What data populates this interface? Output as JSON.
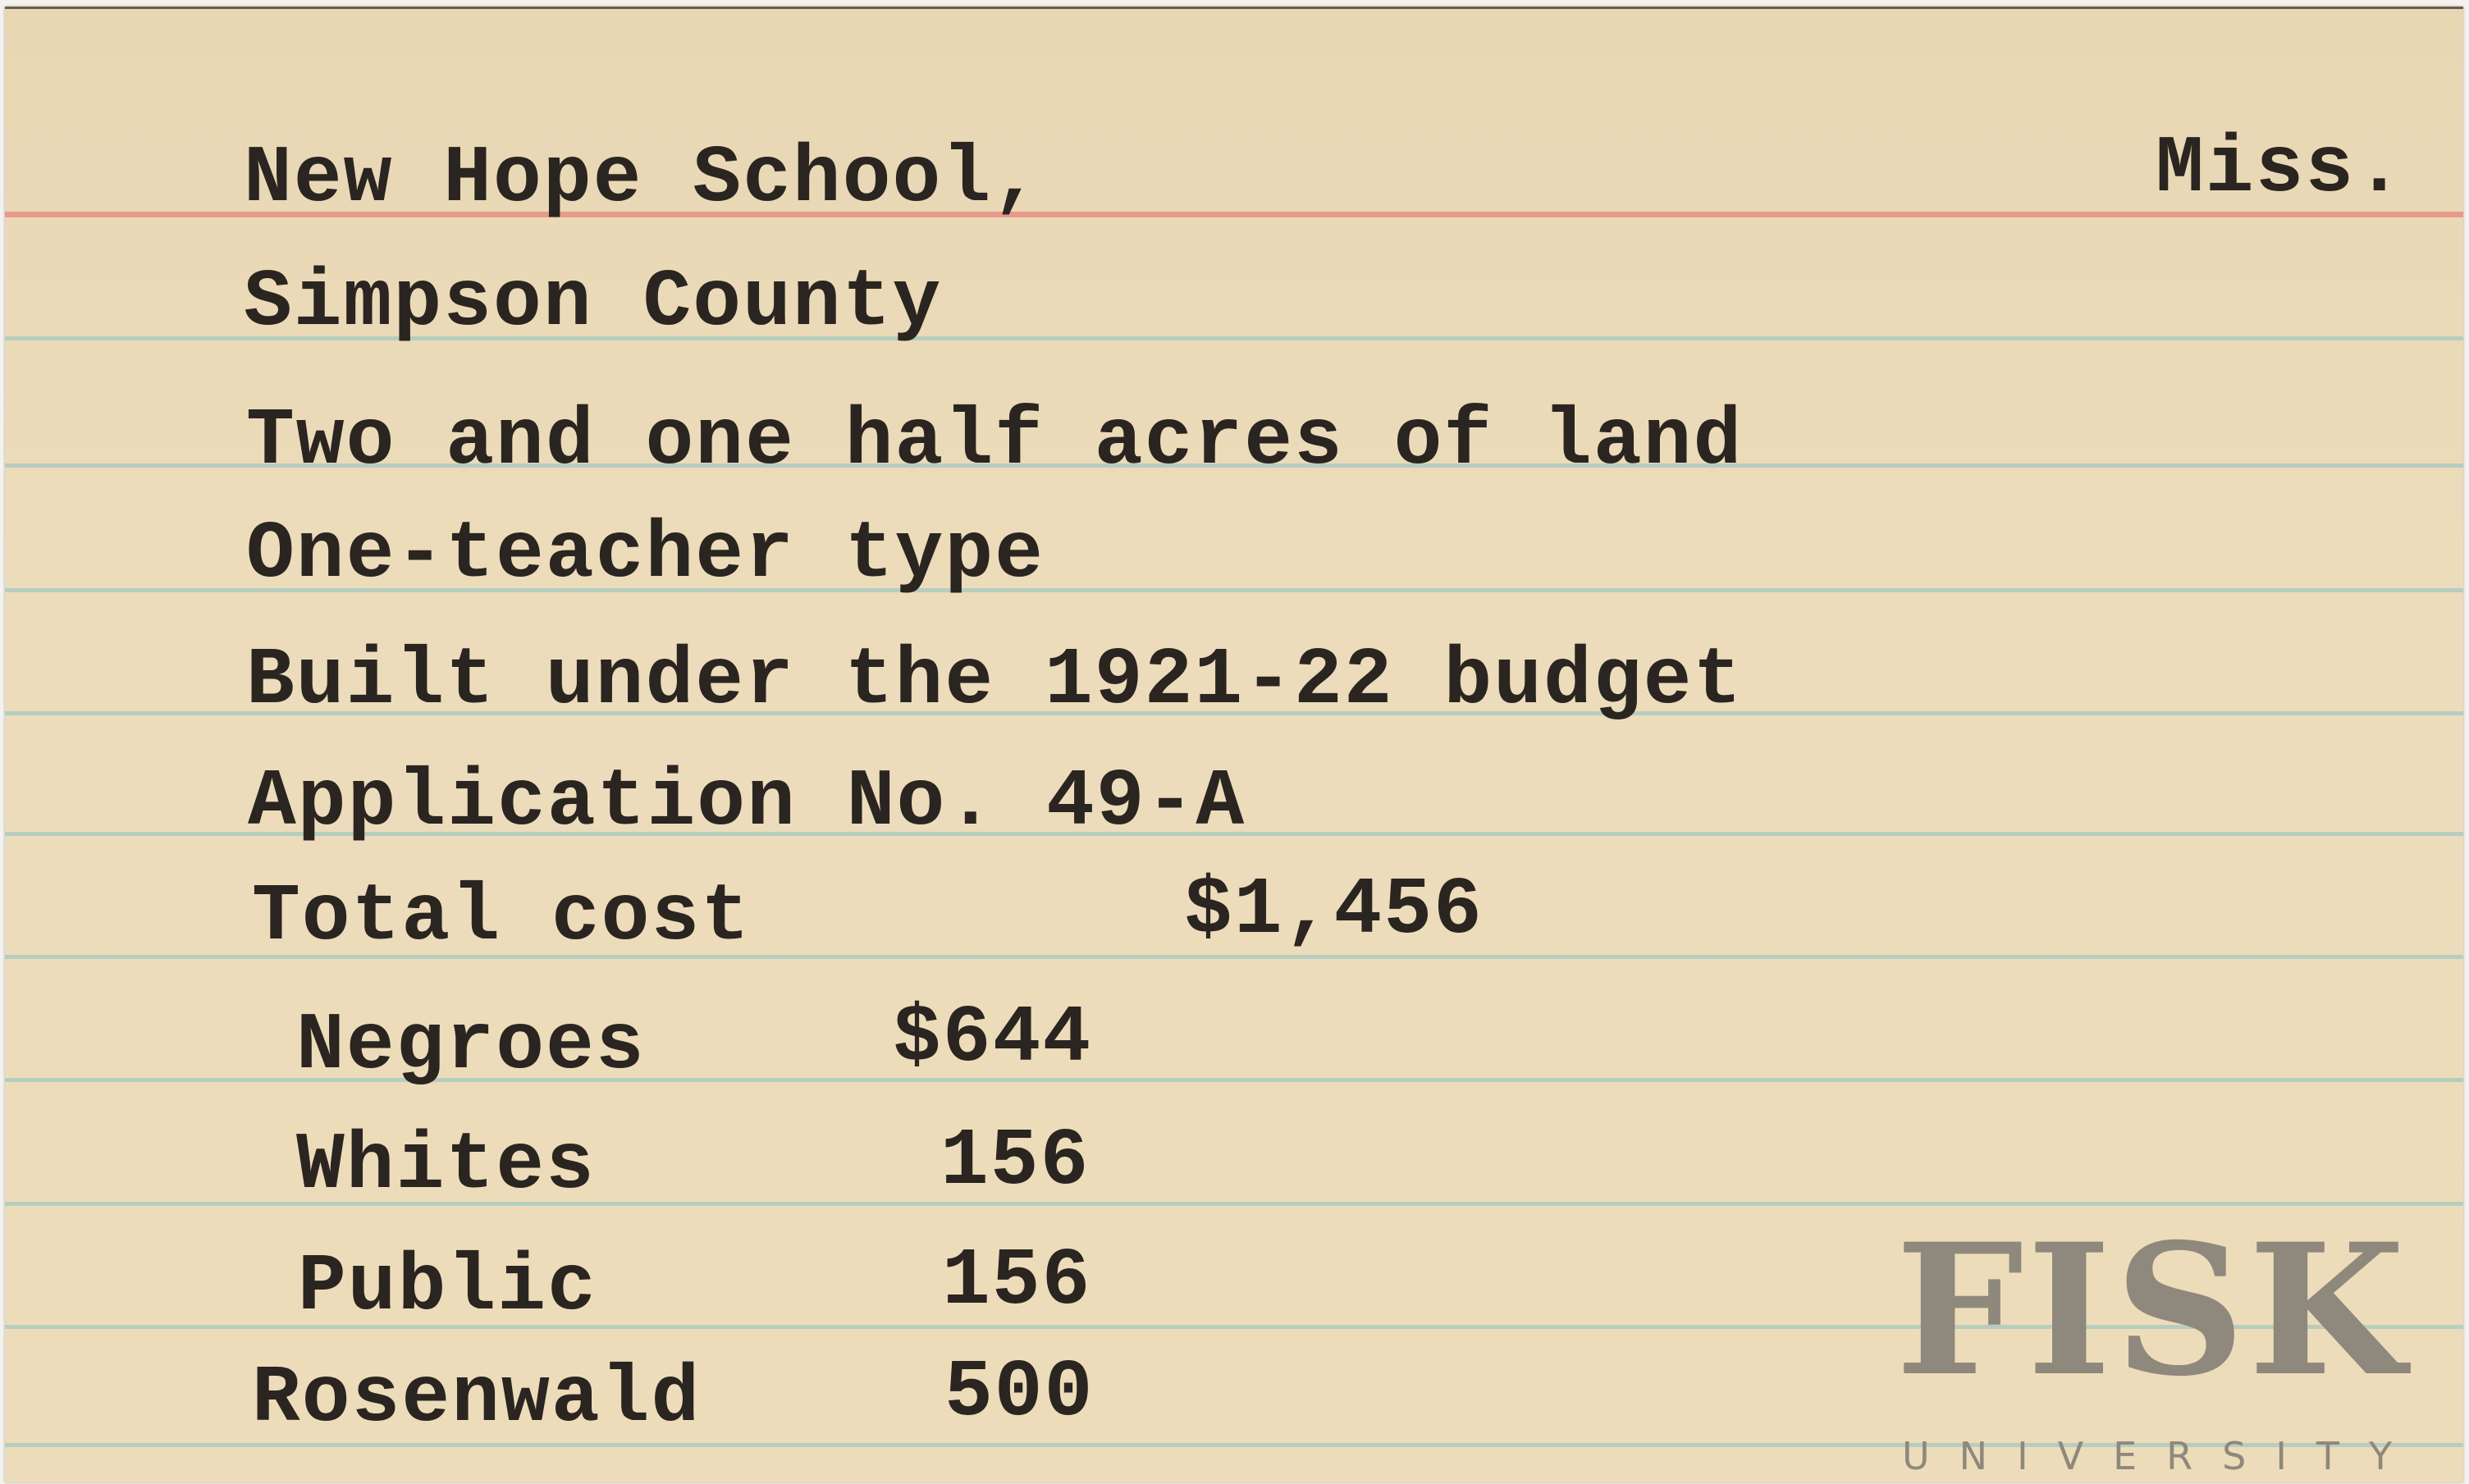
{
  "card": {
    "school": "New Hope School,",
    "state": "Miss.",
    "county": "Simpson County",
    "land": "Two and one half acres of land",
    "type": "One-teacher type",
    "budget": "Built under the 1921-22 budget",
    "application": "Application No. 49-A",
    "total_label": "Total cost",
    "total_value": "$1,456",
    "contributions": [
      {
        "label": "Negroes",
        "value": "$644"
      },
      {
        "label": "Whites",
        "value": "156"
      },
      {
        "label": "Public",
        "value": "156"
      },
      {
        "label": "Rosenwald",
        "value": "500"
      }
    ]
  },
  "watermark": {
    "name": "FISK",
    "sub": "UNIVERSITY"
  },
  "colors": {
    "paper": "#eddcba",
    "red_rule": "#e89a8a",
    "blue_rule": "#a9c9c0",
    "ink": "#2a2520"
  }
}
